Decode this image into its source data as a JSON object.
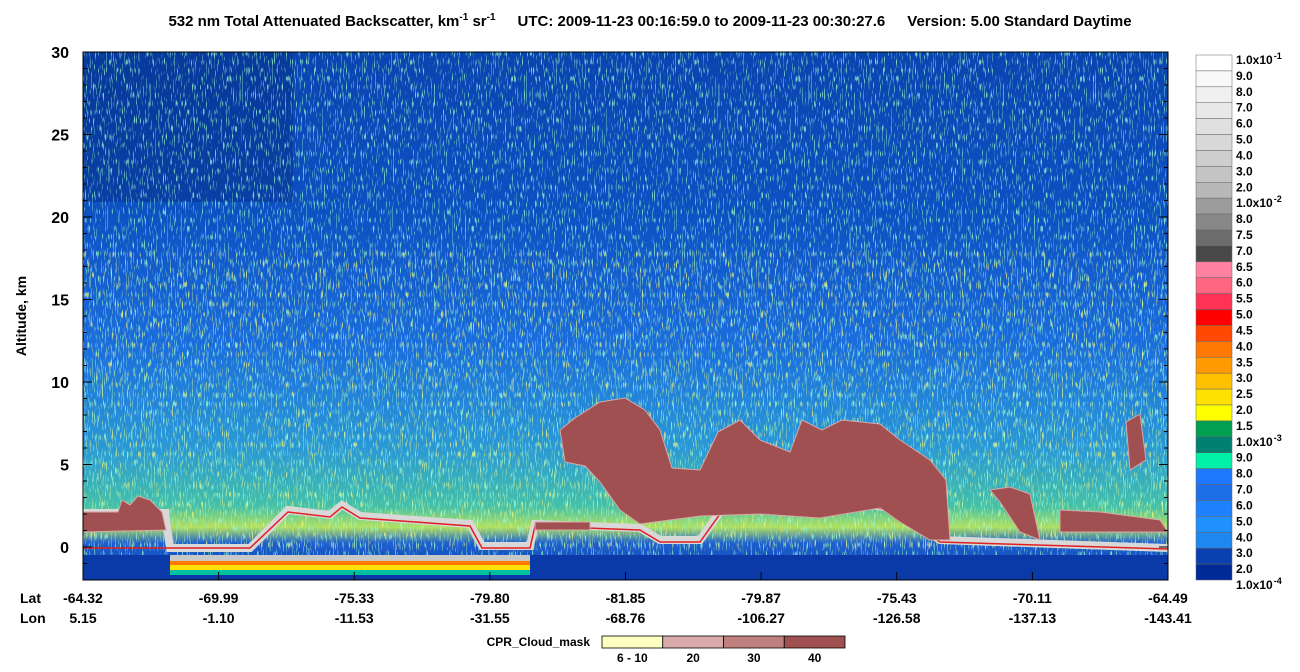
{
  "chart_data": {
    "type": "heatmap",
    "title": {
      "main": "532 nm Total Attenuated Backscatter, km",
      "sup1": "-1",
      "mid": " sr",
      "sup2": "-1",
      "utc": "UTC:  2009-11-23 00:16:59.0  to  2009-11-23 00:30:27.6",
      "version": "Version: 5.00  Standard  Daytime"
    },
    "ylabel": "Altitude, km",
    "ylim": [
      -2,
      30
    ],
    "yticks": [
      0,
      5,
      10,
      15,
      20,
      25,
      30
    ],
    "x_row_titles": [
      "Lat",
      "Lon"
    ],
    "lat": [
      "-64.32",
      "-69.99",
      "-75.33",
      "-79.80",
      "-81.85",
      "-79.87",
      "-75.43",
      "-70.11",
      "-64.49"
    ],
    "lon": [
      "5.15",
      "-1.10",
      "-11.53",
      "-31.55",
      "-68.76",
      "-106.27",
      "-126.58",
      "-137.13",
      "-143.41"
    ],
    "colorbar": {
      "labels": [
        {
          "text": "1.0x10",
          "sup": "-1"
        },
        {
          "text": "9.0"
        },
        {
          "text": "8.0"
        },
        {
          "text": "7.0"
        },
        {
          "text": "6.0"
        },
        {
          "text": "5.0"
        },
        {
          "text": "4.0"
        },
        {
          "text": "3.0"
        },
        {
          "text": "2.0"
        },
        {
          "text": "1.0x10",
          "sup": "-2"
        },
        {
          "text": "8.0"
        },
        {
          "text": "7.5"
        },
        {
          "text": "7.0"
        },
        {
          "text": "6.5"
        },
        {
          "text": "6.0"
        },
        {
          "text": "5.5"
        },
        {
          "text": "5.0"
        },
        {
          "text": "4.5"
        },
        {
          "text": "4.0"
        },
        {
          "text": "3.5"
        },
        {
          "text": "3.0"
        },
        {
          "text": "2.5"
        },
        {
          "text": "2.0"
        },
        {
          "text": "1.5"
        },
        {
          "text": "1.0x10",
          "sup": "-3"
        },
        {
          "text": "9.0"
        },
        {
          "text": "8.0"
        },
        {
          "text": "7.0"
        },
        {
          "text": "6.0"
        },
        {
          "text": "5.0"
        },
        {
          "text": "4.0"
        },
        {
          "text": "3.0"
        },
        {
          "text": "2.0"
        },
        {
          "text": "1.0x10",
          "sup": "-4"
        }
      ],
      "colors": [
        "#ffffff",
        "#f8f8f8",
        "#f0f0f0",
        "#e8e8e8",
        "#e0e0e0",
        "#d8d8d8",
        "#cecece",
        "#c4c4c4",
        "#b8b8b8",
        "#9c9c9c",
        "#888888",
        "#6c6c6c",
        "#484848",
        "#ff80a0",
        "#ff6680",
        "#ff3355",
        "#ff0000",
        "#ff4800",
        "#ff7800",
        "#ff9a00",
        "#ffc000",
        "#ffe000",
        "#ffff00",
        "#00a050",
        "#008070",
        "#00f0a8",
        "#1e78ff",
        "#1e6ee8",
        "#1e82ff",
        "#2090ff",
        "#1e88f0",
        "#0a40b0",
        "#002a98"
      ]
    },
    "cloud_mask": {
      "label": "CPR_Cloud_mask",
      "categories": [
        "6 - 10",
        "20",
        "30",
        "40"
      ],
      "colors": [
        "#ffffc0",
        "#d8aaaa",
        "#c08080",
        "#a05050"
      ]
    }
  }
}
